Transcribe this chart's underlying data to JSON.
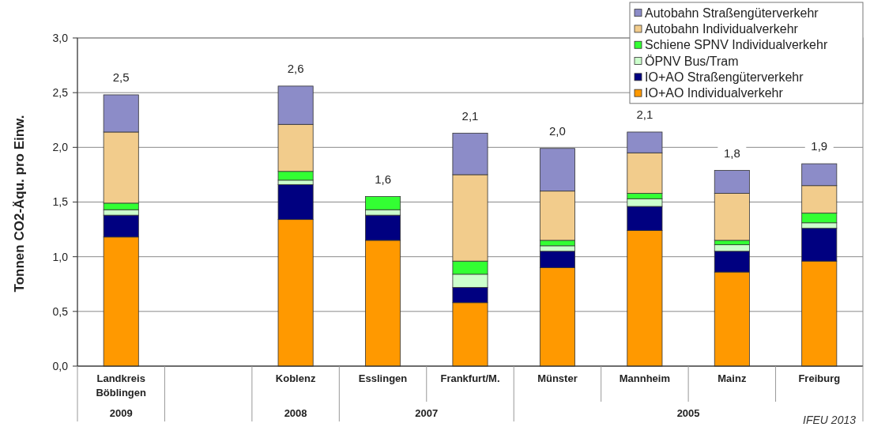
{
  "chart_data": {
    "type": "bar",
    "stacked": true,
    "categories": [
      "Landkreis Böblingen",
      null,
      "Koblenz",
      "Esslingen",
      "Frankfurt/M.",
      "Münster",
      "Mannheim",
      "Mainz",
      "Freiburg"
    ],
    "series": [
      {
        "name": "IO+AO Individualverkehr",
        "color": "#ff9900",
        "values": [
          1.18,
          null,
          1.34,
          1.15,
          0.58,
          0.9,
          1.24,
          0.86,
          0.96
        ]
      },
      {
        "name": "IO+AO Straßengüterverkehr",
        "color": "#000080",
        "values": [
          0.2,
          null,
          0.32,
          0.23,
          0.14,
          0.15,
          0.22,
          0.19,
          0.3
        ]
      },
      {
        "name": "ÖPNV Bus/Tram",
        "color": "#ccffcc",
        "values": [
          0.05,
          null,
          0.04,
          0.05,
          0.12,
          0.05,
          0.07,
          0.06,
          0.05
        ]
      },
      {
        "name": "Schiene SPNV Individualverkehr",
        "color": "#33ff33",
        "values": [
          0.06,
          null,
          0.08,
          0.12,
          0.12,
          0.05,
          0.05,
          0.04,
          0.09
        ]
      },
      {
        "name": "Autobahn Individualverkehr",
        "color": "#f2cc8c",
        "values": [
          0.65,
          null,
          0.43,
          null,
          0.79,
          0.45,
          0.37,
          0.43,
          0.25
        ]
      },
      {
        "name": "Autobahn Straßengüterverkehr",
        "color": "#8c8cc8",
        "values": [
          0.34,
          null,
          0.35,
          null,
          0.38,
          0.39,
          0.19,
          0.21,
          0.2
        ]
      }
    ],
    "totals": [
      "2,5",
      null,
      "2,6",
      "1,6",
      "2,1",
      "2,0",
      "2,1",
      "1,8",
      "1,9"
    ],
    "ylabel": "Tonnen CO2-Äqu. pro Einw.",
    "ylim": [
      0,
      3
    ],
    "yticks": [
      {
        "value": 0,
        "label": "0,0"
      },
      {
        "value": 0.5,
        "label": "0,5"
      },
      {
        "value": 1,
        "label": "1,0"
      },
      {
        "value": 1.5,
        "label": "1,5"
      },
      {
        "value": 2,
        "label": "2,0"
      },
      {
        "value": 2.5,
        "label": "2,5"
      },
      {
        "value": 3,
        "label": "3,0"
      }
    ],
    "grid": "y",
    "legend": "top right",
    "annotations": [
      "2009",
      "2008",
      "2007",
      "2005",
      "IFEU 2013"
    ]
  }
}
